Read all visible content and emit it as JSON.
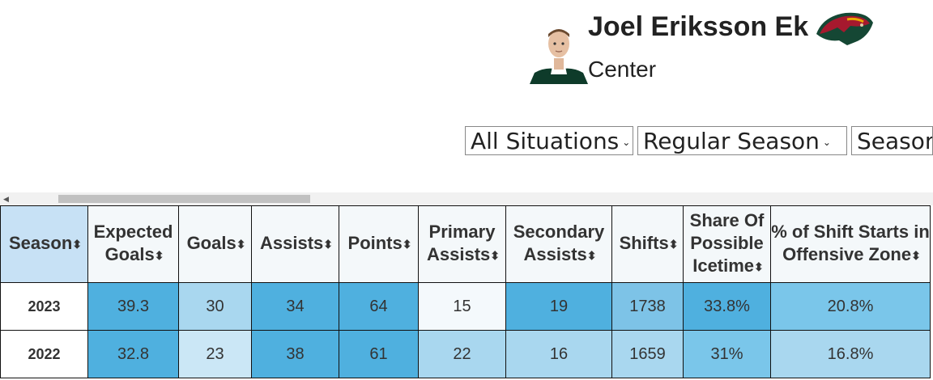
{
  "player": {
    "name": "Joel Eriksson Ek",
    "position": "Center"
  },
  "filters": [
    {
      "value": "All Situations"
    },
    {
      "value": "Regular Season"
    },
    {
      "value": "Season"
    }
  ],
  "table": {
    "columns": [
      {
        "label": "Season",
        "sort": "⬍"
      },
      {
        "label": "Expected Goals",
        "sort": "⬍"
      },
      {
        "label": "Goals",
        "sort": "⬍"
      },
      {
        "label": "Assists",
        "sort": "⬍"
      },
      {
        "label": "Points",
        "sort": "⬍"
      },
      {
        "label": "Primary Assists",
        "sort": "⬍"
      },
      {
        "label": "Secondary Assists",
        "sort": "⬍"
      },
      {
        "label": "Shifts",
        "sort": "⬍"
      },
      {
        "label": "Share Of Possible Icetime",
        "sort": "⬍"
      },
      {
        "label": "% of Shift Starts in Offensive Zone",
        "sort": "⬍"
      }
    ],
    "rows": [
      {
        "cells": [
          "2023",
          "39.3",
          "30",
          "34",
          "64",
          "15",
          "19",
          "1738",
          "33.8%",
          "20.8%"
        ],
        "colors": [
          "#ffffff",
          "#4fb0df",
          "#a9d7ef",
          "#4fb0df",
          "#4fb0df",
          "#f4f9fc",
          "#4fb0df",
          "#7dc3e7",
          "#4fb0df",
          "#7ac6ea"
        ]
      },
      {
        "cells": [
          "2022",
          "32.8",
          "23",
          "38",
          "61",
          "22",
          "16",
          "1659",
          "31%",
          "16.8%"
        ],
        "colors": [
          "#ffffff",
          "#4fb0df",
          "#cbe7f6",
          "#4fb0df",
          "#4fb0df",
          "#a9d7ef",
          "#a9d7ef",
          "#a9d7ef",
          "#7ac6ea",
          "#a9d7ef"
        ]
      }
    ]
  }
}
